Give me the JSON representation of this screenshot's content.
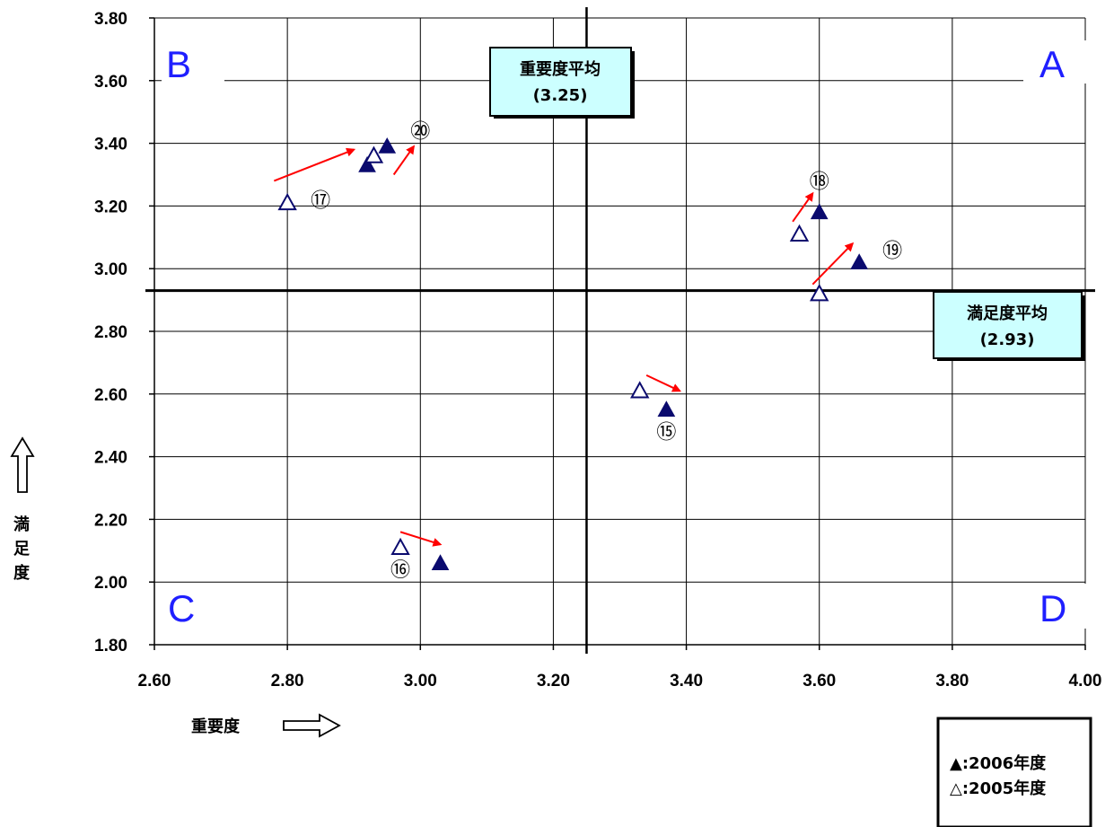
{
  "chart_data": {
    "type": "scatter",
    "xlabel": "重要度",
    "ylabel": "満足度",
    "xlim": [
      2.6,
      4.0
    ],
    "ylim": [
      1.8,
      3.8
    ],
    "x_ticks": [
      "2.60",
      "2.80",
      "3.00",
      "3.20",
      "3.40",
      "3.60",
      "3.80",
      "4.00"
    ],
    "y_ticks": [
      "3.80",
      "3.60",
      "3.40",
      "3.20",
      "3.00",
      "2.80",
      "2.60",
      "2.40",
      "2.20",
      "2.00",
      "1.80"
    ],
    "grid": true,
    "quadrants": [
      "A",
      "B",
      "C",
      "D"
    ],
    "reference_lines": {
      "importance_avg": {
        "label": "重要度平均",
        "value_label": "(3.25)",
        "value": 3.25
      },
      "satisfaction_avg": {
        "label": "満足度平均",
        "value_label": "(2.93)",
        "value": 2.93
      }
    },
    "series": [
      {
        "name": "2006年度",
        "legend_label": "▲:2006年度",
        "marker": "filled-triangle",
        "points": [
          {
            "id": "⑮",
            "x": 3.37,
            "y": 2.55
          },
          {
            "id": "⑯",
            "x": 3.03,
            "y": 2.06
          },
          {
            "id": "⑰",
            "x": 2.92,
            "y": 3.33
          },
          {
            "id": "⑱",
            "x": 3.6,
            "y": 3.18
          },
          {
            "id": "⑲",
            "x": 3.66,
            "y": 3.02
          },
          {
            "id": "⑳",
            "x": 2.95,
            "y": 3.39
          }
        ]
      },
      {
        "name": "2005年度",
        "legend_label": "△:2005年度",
        "marker": "open-triangle",
        "points": [
          {
            "id": "⑮",
            "x": 3.33,
            "y": 2.61
          },
          {
            "id": "⑯",
            "x": 2.97,
            "y": 2.11
          },
          {
            "id": "⑰",
            "x": 2.8,
            "y": 3.21
          },
          {
            "id": "⑱",
            "x": 3.57,
            "y": 3.11
          },
          {
            "id": "⑲",
            "x": 3.6,
            "y": 2.92
          },
          {
            "id": "⑳",
            "x": 2.93,
            "y": 3.36
          }
        ]
      }
    ],
    "labels": [
      {
        "text": "⑮",
        "x": 3.37,
        "y": 2.48
      },
      {
        "text": "⑯",
        "x": 2.97,
        "y": 2.04
      },
      {
        "text": "⑰",
        "x": 2.85,
        "y": 3.22
      },
      {
        "text": "⑱",
        "x": 3.6,
        "y": 3.28
      },
      {
        "text": "⑲",
        "x": 3.71,
        "y": 3.06
      },
      {
        "text": "⑳",
        "x": 3.0,
        "y": 3.44
      }
    ],
    "arrows": [
      {
        "from": [
          3.34,
          2.66
        ],
        "to": [
          3.39,
          2.61
        ]
      },
      {
        "from": [
          2.97,
          2.16
        ],
        "to": [
          3.03,
          2.12
        ]
      },
      {
        "from": [
          2.78,
          3.28
        ],
        "to": [
          2.9,
          3.38
        ]
      },
      {
        "from": [
          2.96,
          3.3
        ],
        "to": [
          2.99,
          3.39
        ]
      },
      {
        "from": [
          3.56,
          3.15
        ],
        "to": [
          3.59,
          3.24
        ]
      },
      {
        "from": [
          3.59,
          2.95
        ],
        "to": [
          3.65,
          3.08
        ]
      }
    ],
    "arrow_color": "#ff0000",
    "marker_color": "#0a0a6e",
    "quadrant_color": "#1f1fff",
    "box_fill": "#ccffff"
  }
}
